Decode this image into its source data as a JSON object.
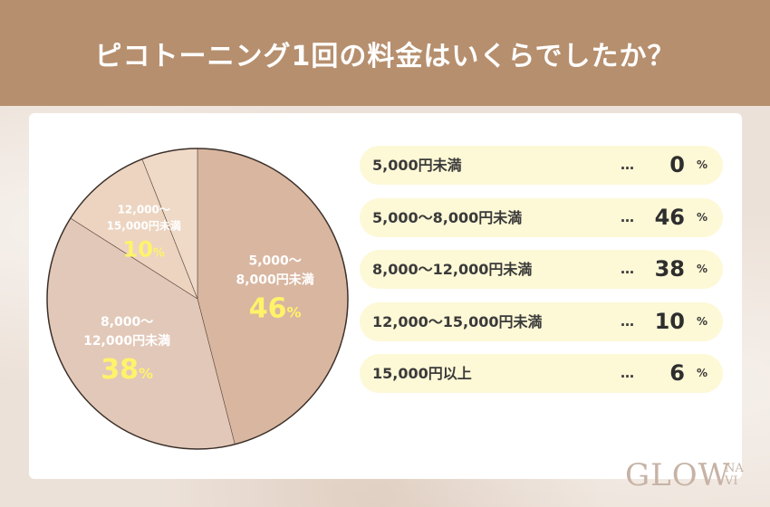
{
  "header": {
    "title": "ピコトーニング1回の料金はいくらでしたか？"
  },
  "colors": {
    "header_bg": "#b68f6e",
    "slice_colors": [
      "#cfa583",
      "#d9b6a0",
      "#e2c8b8",
      "#ecd4c0",
      "#efd9c7"
    ],
    "percent_yellow": "#fff36a",
    "row_bg": "#fdf8d6"
  },
  "chart_data": {
    "type": "pie",
    "title": "ピコトーニング1回の料金はいくらでしたか？",
    "unit": "%",
    "categories": [
      "5,000円未満",
      "5,000〜8,000円未満",
      "8,000〜12,000円未満",
      "12,000〜15,000円未満",
      "15,000円以上"
    ],
    "values": [
      0,
      46,
      38,
      10,
      6
    ],
    "slice_labels": [
      {
        "line1": "5,000〜",
        "line2": "8,000円未満",
        "percent": "46"
      },
      {
        "line1": "8,000〜",
        "line2": "12,000円未満",
        "percent": "38"
      },
      {
        "line1": "12,000〜",
        "line2": "15,000円未満",
        "percent": "10"
      }
    ]
  },
  "legend_rows": [
    {
      "label": "5,000円未満",
      "dots": "…",
      "value": "0",
      "unit": "%"
    },
    {
      "label": "5,000〜8,000円未満",
      "dots": "…",
      "value": "46",
      "unit": "%"
    },
    {
      "label": "8,000〜12,000円未満",
      "dots": "…",
      "value": "38",
      "unit": "%"
    },
    {
      "label": "12,000〜15,000円未満",
      "dots": "…",
      "value": "10",
      "unit": "%"
    },
    {
      "label": "15,000円以上",
      "dots": "…",
      "value": "6",
      "unit": "%"
    }
  ],
  "logo": {
    "main": "GLOW",
    "small_top": "NA",
    "small_bottom": "VI"
  }
}
